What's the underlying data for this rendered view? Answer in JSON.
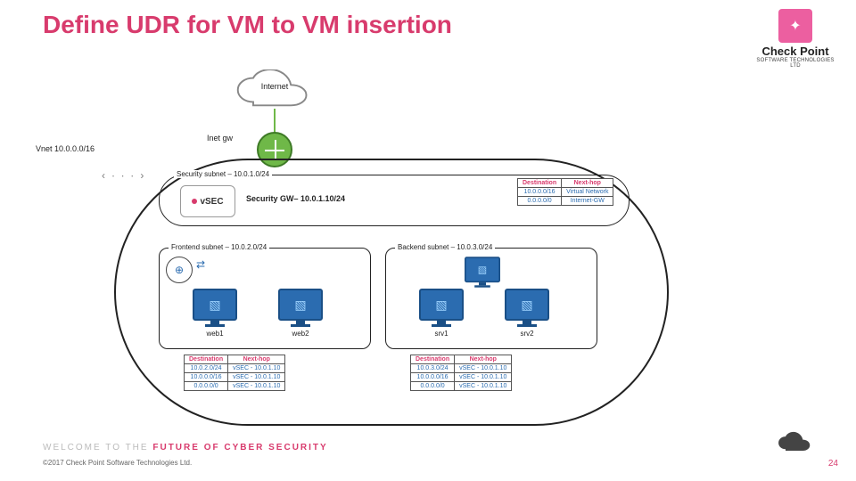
{
  "title": "Define UDR for VM to VM insertion",
  "logo": {
    "brand": "Check Point",
    "sub": "SOFTWARE TECHNOLOGIES LTD"
  },
  "internet": "Internet",
  "inetgw": "Inet gw",
  "vnet_label": "Vnet 10.0.0.0/16",
  "security_subnet": {
    "label": "Security subnet – 10.0.1.0/24",
    "gw": "Security GW– 10.0.1.10/24",
    "vsec": "vSEC"
  },
  "frontend": {
    "label": "Frontend subnet – 10.0.2.0/24",
    "vm1": "web1",
    "vm2": "web2"
  },
  "backend": {
    "label": "Backend subnet – 10.0.3.0/24",
    "vm1": "srv1",
    "vm2": "srv2"
  },
  "udr_sec": {
    "headers": [
      "Destination",
      "Next-hop"
    ],
    "rows": [
      [
        "10.0.0.0/16",
        "Virtual Network"
      ],
      [
        "0.0.0.0/0",
        "Internet-GW"
      ]
    ]
  },
  "udr_fe": {
    "headers": [
      "Destination",
      "Next-hop"
    ],
    "rows": [
      [
        "10.0.2.0/24",
        "vSEC - 10.0.1.10"
      ],
      [
        "10.0.0.0/16",
        "vSEC - 10.0.1.10"
      ],
      [
        "0.0.0.0/0",
        "vSEC - 10.0.1.10"
      ]
    ]
  },
  "udr_be": {
    "headers": [
      "Destination",
      "Next-hop"
    ],
    "rows": [
      [
        "10.0.3.0/24",
        "vSEC - 10.0.1.10"
      ],
      [
        "10.0.0.0/16",
        "vSEC - 10.0.1.10"
      ],
      [
        "0.0.0.0/0",
        "vSEC - 10.0.1.10"
      ]
    ]
  },
  "tagline_pre": "WELCOME TO THE ",
  "tagline_em": "FUTURE OF CYBER SECURITY",
  "copyright": "©2017 Check Point Software Technologies Ltd.",
  "pagenum": "24",
  "colors": {
    "accent": "#d83b6d",
    "blue": "#2b6cb0",
    "green": "#6fb848"
  }
}
